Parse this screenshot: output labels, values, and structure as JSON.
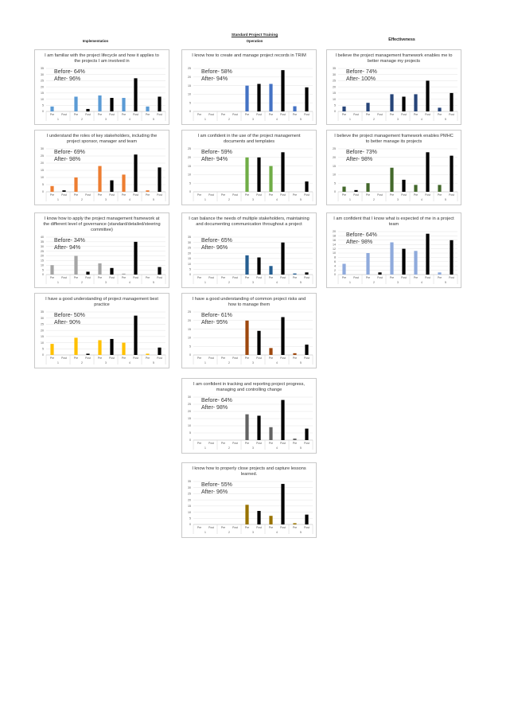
{
  "header": {
    "main_title": "Standard Project Training",
    "sections": {
      "implementation": "Implementation",
      "operation": "Operation",
      "effectiveness": "Effectiveness"
    }
  },
  "chart_data": [
    {
      "type": "bar",
      "column": "implementation",
      "title": "I am familiar with the project lifecycle and how it applies to the projects I am involved in",
      "before": "Before- 64%",
      "after": "After- 96%",
      "color": "#5B9BD5",
      "yticks": [
        0,
        5,
        10,
        15,
        20,
        25,
        30,
        35
      ],
      "ylim": [
        0,
        35
      ],
      "groups": [
        "1",
        "2",
        "3",
        "4",
        "5"
      ],
      "bar_labels": [
        "Pre",
        "Post"
      ],
      "series": [
        {
          "name": "Pre",
          "values": [
            4,
            12,
            13,
            11,
            4
          ]
        },
        {
          "name": "Post",
          "values": [
            0,
            2,
            11,
            27,
            12
          ]
        }
      ]
    },
    {
      "type": "bar",
      "column": "implementation",
      "title": "I understand the roles of key stakeholders, including the project sponsor, manager and team",
      "before": "Before- 69%",
      "after": "After- 98%",
      "color": "#ED7D31",
      "yticks": [
        0,
        5,
        10,
        15,
        20,
        25,
        30
      ],
      "ylim": [
        0,
        30
      ],
      "groups": [
        "1",
        "2",
        "3",
        "4",
        "5"
      ],
      "bar_labels": [
        "Pre",
        "Post"
      ],
      "series": [
        {
          "name": "Pre",
          "values": [
            4,
            10,
            18,
            12,
            1
          ]
        },
        {
          "name": "Post",
          "values": [
            1,
            0,
            8,
            26,
            17
          ]
        }
      ]
    },
    {
      "type": "bar",
      "column": "implementation",
      "title": "I know how to apply the project management framework at the different level of governance (standard/detailed/steering committee)",
      "before": "Before- 34%",
      "after": "After- 94%",
      "color": "#A5A5A5",
      "yticks": [
        0,
        5,
        10,
        15,
        20,
        25,
        30,
        35,
        40
      ],
      "ylim": [
        0,
        40
      ],
      "groups": [
        "1",
        "2",
        "3",
        "4",
        "5"
      ],
      "bar_labels": [
        "Pre",
        "Post"
      ],
      "series": [
        {
          "name": "Pre",
          "values": [
            10,
            20,
            12,
            1,
            0
          ]
        },
        {
          "name": "Post",
          "values": [
            0,
            3,
            7,
            35,
            8
          ]
        }
      ]
    },
    {
      "type": "bar",
      "column": "implementation",
      "title": "I have a good understanding of project management best practice",
      "before": "Before- 50%",
      "after": "After- 90%",
      "color": "#FFC000",
      "yticks": [
        0,
        5,
        10,
        15,
        20,
        25,
        30,
        35
      ],
      "ylim": [
        0,
        35
      ],
      "groups": [
        "1",
        "2",
        "3",
        "4",
        "5"
      ],
      "bar_labels": [
        "Pre",
        "Post"
      ],
      "series": [
        {
          "name": "Pre",
          "values": [
            9,
            14,
            12,
            10,
            1
          ]
        },
        {
          "name": "Post",
          "values": [
            0,
            1,
            13,
            32,
            6
          ]
        }
      ]
    },
    {
      "type": "bar",
      "column": "operation",
      "title": "I know how to create and manage project records in TRIM",
      "before": "Before- 58%",
      "after": "After- 94%",
      "color": "#4472C4",
      "yticks": [
        0,
        5,
        10,
        15,
        20,
        25
      ],
      "ylim": [
        0,
        25
      ],
      "groups": [
        "1",
        "2",
        "3",
        "4",
        "5"
      ],
      "bar_labels": [
        "Pre",
        "Post"
      ],
      "series": [
        {
          "name": "Pre",
          "values": [
            0,
            0,
            15,
            16,
            3
          ]
        },
        {
          "name": "Post",
          "values": [
            0,
            0,
            16,
            24,
            14
          ]
        }
      ]
    },
    {
      "type": "bar",
      "column": "operation",
      "title": "I am confident in the use of the project management documents and templates",
      "before": "Before- 59%",
      "after": "After- 94%",
      "color": "#70AD47",
      "yticks": [
        0,
        5,
        10,
        15,
        20,
        25
      ],
      "ylim": [
        0,
        25
      ],
      "groups": [
        "1",
        "2",
        "3",
        "4",
        "5"
      ],
      "bar_labels": [
        "Pre",
        "Post"
      ],
      "series": [
        {
          "name": "Pre",
          "values": [
            0,
            0,
            20,
            15,
            0
          ]
        },
        {
          "name": "Post",
          "values": [
            0,
            0,
            20,
            23,
            6
          ]
        }
      ]
    },
    {
      "type": "bar",
      "column": "operation",
      "title": "I can balance the needs of multiple stakeholders, maintaining and documenting communication throughout a project",
      "before": "Before- 65%",
      "after": "After- 96%",
      "color": "#255E91",
      "yticks": [
        0,
        5,
        10,
        15,
        20,
        25,
        30,
        35
      ],
      "ylim": [
        0,
        35
      ],
      "groups": [
        "1",
        "2",
        "3",
        "4",
        "5"
      ],
      "bar_labels": [
        "Pre",
        "Post"
      ],
      "series": [
        {
          "name": "Pre",
          "values": [
            0,
            0,
            18,
            8,
            1
          ]
        },
        {
          "name": "Post",
          "values": [
            0,
            0,
            16,
            30,
            2
          ]
        }
      ]
    },
    {
      "type": "bar",
      "column": "operation",
      "title": "I have a good understanding of common project risks and how to manage them",
      "before": "Before- 61%",
      "after": "After- 95%",
      "color": "#9E480E",
      "yticks": [
        0,
        5,
        10,
        15,
        20,
        25
      ],
      "ylim": [
        0,
        25
      ],
      "groups": [
        "1",
        "2",
        "3",
        "4",
        "5"
      ],
      "bar_labels": [
        "Pre",
        "Post"
      ],
      "series": [
        {
          "name": "Pre",
          "values": [
            0,
            0,
            20,
            4,
            1
          ]
        },
        {
          "name": "Post",
          "values": [
            0,
            0,
            14,
            22,
            6
          ]
        }
      ]
    },
    {
      "type": "bar",
      "column": "operation",
      "title": "I am confident in tracking and reporting project progress, managing and controlling change",
      "before": "Before- 64%",
      "after": "After- 98%",
      "color": "#636363",
      "yticks": [
        0,
        5,
        10,
        15,
        20,
        25,
        30
      ],
      "ylim": [
        0,
        30
      ],
      "groups": [
        "1",
        "2",
        "3",
        "4",
        "5"
      ],
      "bar_labels": [
        "Pre",
        "Post"
      ],
      "series": [
        {
          "name": "Pre",
          "values": [
            0,
            0,
            18,
            9,
            1
          ]
        },
        {
          "name": "Post",
          "values": [
            0,
            0,
            17,
            28,
            8
          ]
        }
      ]
    },
    {
      "type": "bar",
      "column": "operation",
      "title": "I know how to properly close projects and capture lessons learned.",
      "before": "Before- 55%",
      "after": "After- 96%",
      "color": "#997300",
      "yticks": [
        0,
        5,
        10,
        15,
        20,
        25,
        30,
        35
      ],
      "ylim": [
        0,
        35
      ],
      "groups": [
        "1",
        "2",
        "3",
        "4",
        "5"
      ],
      "bar_labels": [
        "Pre",
        "Post"
      ],
      "series": [
        {
          "name": "Pre",
          "values": [
            0,
            0,
            16,
            7,
            1
          ]
        },
        {
          "name": "Post",
          "values": [
            0,
            0,
            11,
            33,
            8
          ]
        }
      ]
    },
    {
      "type": "bar",
      "column": "effectiveness",
      "title": "I believe the project management framework enables me to better manage my projects",
      "before": "Before- 74%",
      "after": "After- 100%",
      "color": "#264478",
      "yticks": [
        0,
        5,
        10,
        15,
        20,
        25,
        30,
        35
      ],
      "ylim": [
        0,
        35
      ],
      "groups": [
        "1",
        "2",
        "3",
        "4",
        "5"
      ],
      "bar_labels": [
        "Pre",
        "Post"
      ],
      "series": [
        {
          "name": "Pre",
          "values": [
            4,
            7,
            14,
            14,
            3
          ]
        },
        {
          "name": "Post",
          "values": [
            0,
            0,
            12,
            25,
            15
          ]
        }
      ]
    },
    {
      "type": "bar",
      "column": "effectiveness",
      "title": "I believe the project management framework enables PMHC to better manage its projects",
      "before": "Before- 73%",
      "after": "After- 98%",
      "color": "#43682B",
      "yticks": [
        0,
        5,
        10,
        15,
        20,
        25
      ],
      "ylim": [
        0,
        25
      ],
      "groups": [
        "1",
        "2",
        "3",
        "4",
        "5"
      ],
      "bar_labels": [
        "Pre",
        "Post"
      ],
      "series": [
        {
          "name": "Pre",
          "values": [
            3,
            5,
            14,
            4,
            4
          ]
        },
        {
          "name": "Post",
          "values": [
            1,
            0,
            7,
            23,
            21
          ]
        }
      ]
    },
    {
      "type": "bar",
      "column": "effectiveness",
      "title": "I am confident that I know what is expected of me in a project team",
      "before": "Before- 64%",
      "after": "After- 98%",
      "color": "#8FAADC",
      "yticks": [
        0,
        2,
        4,
        6,
        8,
        10,
        12,
        14,
        16,
        18,
        20
      ],
      "ylim": [
        0,
        20
      ],
      "groups": [
        "1",
        "2",
        "3",
        "4",
        "5"
      ],
      "bar_labels": [
        "Pre",
        "Post"
      ],
      "series": [
        {
          "name": "Pre",
          "values": [
            5,
            10,
            15,
            11,
            1
          ]
        },
        {
          "name": "Post",
          "values": [
            0,
            1,
            12,
            19,
            16
          ]
        }
      ]
    }
  ]
}
